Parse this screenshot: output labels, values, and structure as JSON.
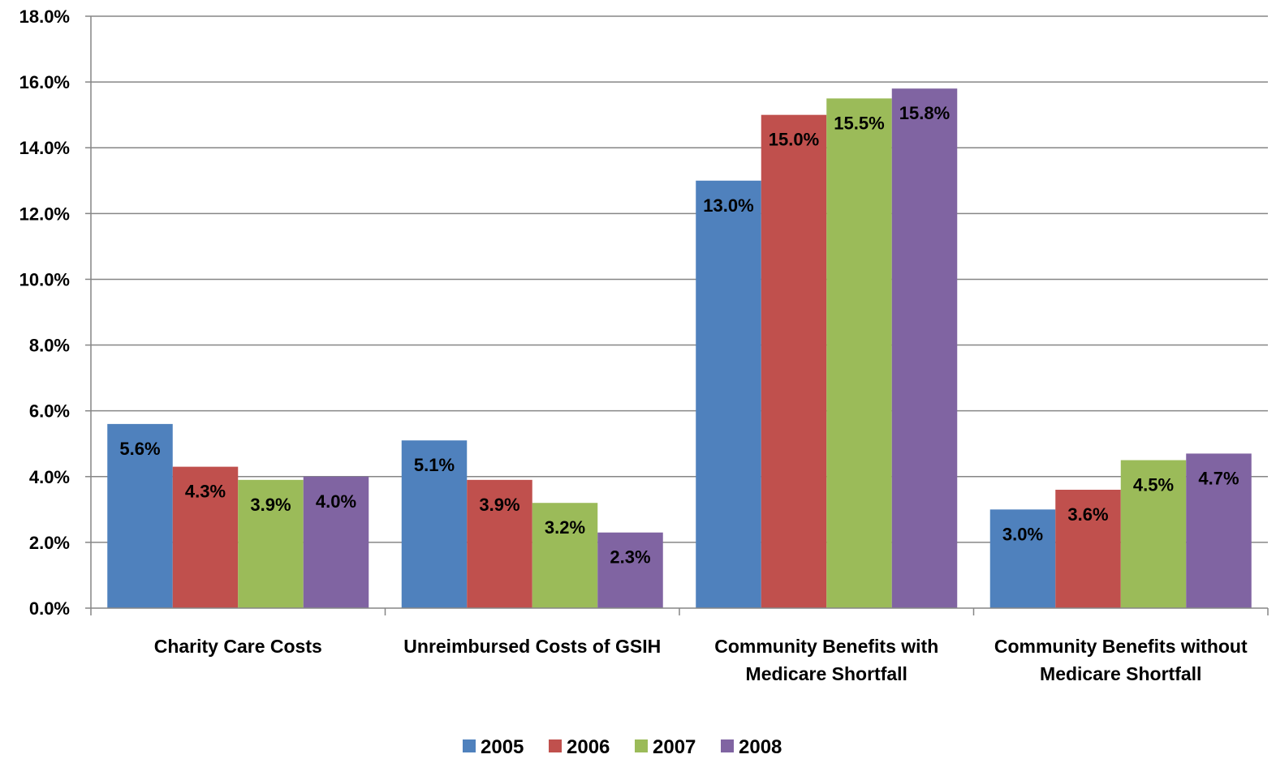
{
  "chart_data": {
    "type": "bar",
    "title": "",
    "xlabel": "",
    "ylabel": "",
    "categories": [
      [
        "Charity Care Costs"
      ],
      [
        "Unreimbursed Costs of GSIH"
      ],
      [
        "Community Benefits with",
        "Medicare Shortfall"
      ],
      [
        "Community Benefits without",
        "Medicare Shortfall"
      ]
    ],
    "series": [
      {
        "name": "2005",
        "color": "#4F81BD",
        "values": [
          5.6,
          5.1,
          13.0,
          3.0
        ],
        "labels": [
          "5.6%",
          "5.1%",
          "13.0%",
          "3.0%"
        ]
      },
      {
        "name": "2006",
        "color": "#C0504D",
        "values": [
          4.3,
          3.9,
          15.0,
          3.6
        ],
        "labels": [
          "4.3%",
          "3.9%",
          "15.0%",
          "3.6%"
        ]
      },
      {
        "name": "2007",
        "color": "#9BBB59",
        "values": [
          3.9,
          3.2,
          15.5,
          4.5
        ],
        "labels": [
          "3.9%",
          "3.2%",
          "15.5%",
          "4.5%"
        ]
      },
      {
        "name": "2008",
        "color": "#8064A2",
        "values": [
          4.0,
          2.3,
          15.8,
          4.7
        ],
        "labels": [
          "4.0%",
          "2.3%",
          "15.8%",
          "4.7%"
        ]
      }
    ],
    "ylim": [
      0,
      18
    ],
    "yticks": [
      0,
      2,
      4,
      6,
      8,
      10,
      12,
      14,
      16,
      18
    ],
    "ytick_labels": [
      "0.0%",
      "2.0%",
      "4.0%",
      "6.0%",
      "8.0%",
      "10.0%",
      "12.0%",
      "14.0%",
      "16.0%",
      "18.0%"
    ],
    "grid": true,
    "legend_position": "bottom-center"
  }
}
